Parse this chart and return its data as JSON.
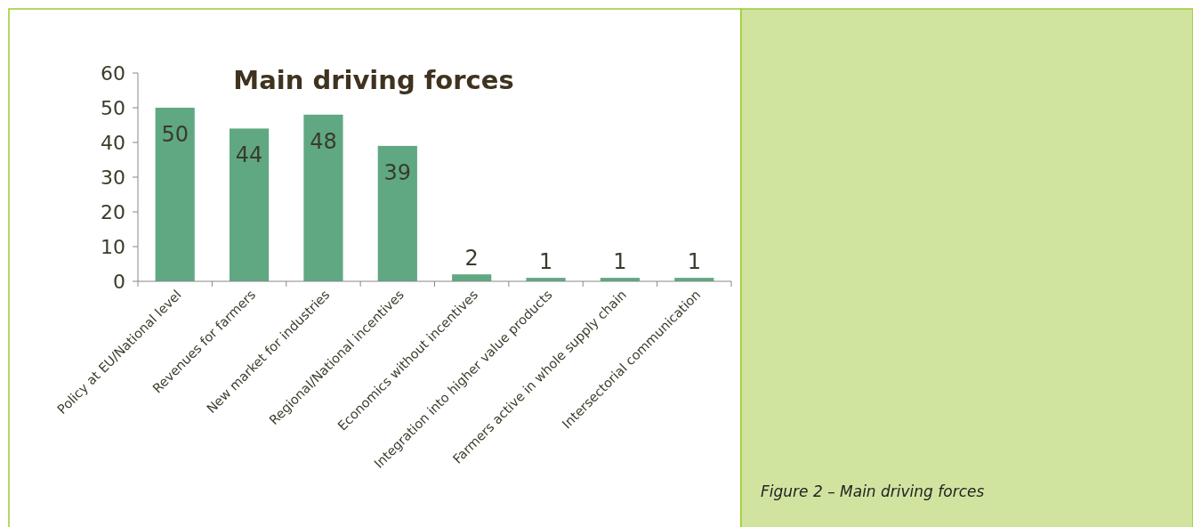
{
  "chart_data": {
    "type": "bar",
    "title": "Main driving forces",
    "categories": [
      "Policy at EU/National level",
      "Revenues for farmers",
      "New market for industries",
      "Regional/National incentives",
      "Economics without incentives",
      "Integration into higher value products",
      "Farmers active in whole supply chain",
      "Intersectorial communication"
    ],
    "values": [
      50,
      44,
      48,
      39,
      2,
      1,
      1,
      1
    ],
    "color": "#5fa882",
    "ylim": [
      0,
      60
    ],
    "yticks": [
      0,
      10,
      20,
      30,
      40,
      50,
      60
    ],
    "grid": false,
    "data_labels": true,
    "annotations": [
      "Figure 2 – Main driving forces"
    ]
  }
}
